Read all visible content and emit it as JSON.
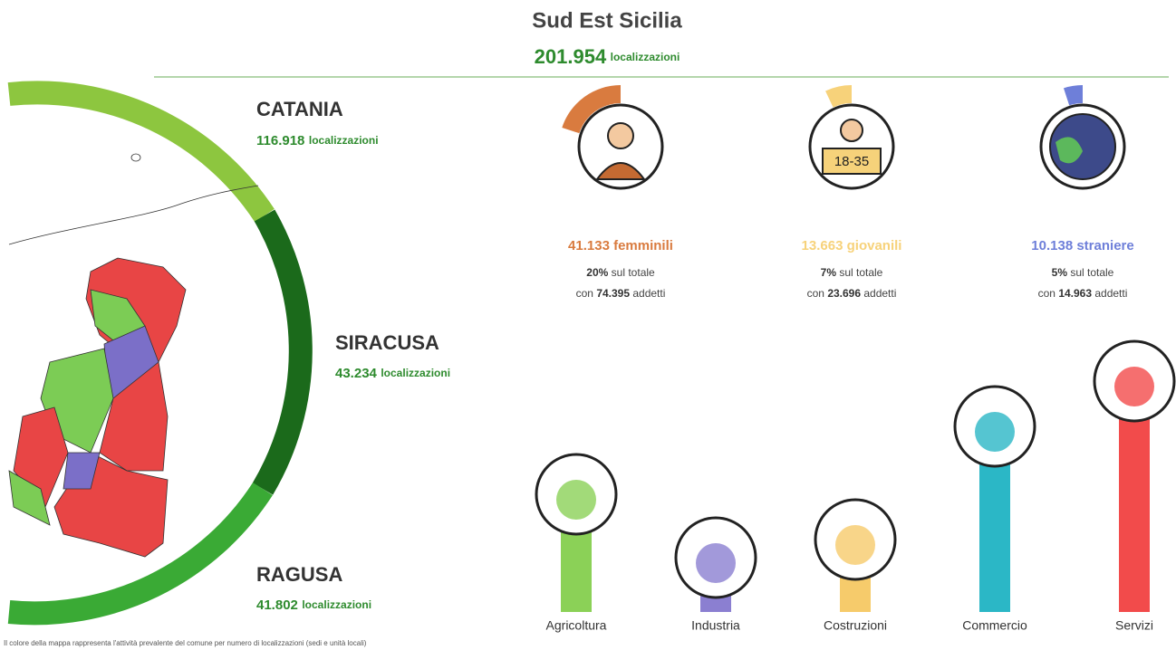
{
  "header": {
    "title": "Sud Est Sicilia",
    "total": "201.954",
    "unit": "localizzazioni"
  },
  "provinces": [
    {
      "name": "CATANIA",
      "count": {
        "value": 116918,
        "label": "116.918"
      },
      "unit": "localizzazioni"
    },
    {
      "name": "SIRACUSA",
      "count": {
        "value": 43234,
        "label": "43.234"
      },
      "unit": "localizzazioni"
    },
    {
      "name": "RAGUSA",
      "count": {
        "value": 41802,
        "label": "41.802"
      },
      "unit": "localizzazioni"
    }
  ],
  "indicators": [
    {
      "count": "41.133",
      "label": "femminili",
      "share": {
        "value": 20,
        "label": "20%"
      },
      "share_text": "sul totale",
      "prefix": "con",
      "employees": "74.395",
      "suffix": "addetti",
      "color": "#d97b3f"
    },
    {
      "count": "13.663",
      "label": "giovanili",
      "share": {
        "value": 7,
        "label": "7%"
      },
      "share_text": "sul totale",
      "prefix": "con",
      "employees": "23.696",
      "suffix": "addetti",
      "color": "#f7d27a"
    },
    {
      "count": "10.138",
      "label": "straniere",
      "share": {
        "value": 5,
        "label": "5%"
      },
      "share_text": "sul totale",
      "prefix": "con",
      "employees": "14.963",
      "suffix": "addetti",
      "color": "#6e7fd9"
    }
  ],
  "icon_text": "18-35",
  "sectors": [
    {
      "label": "Agricoltura",
      "value": 130,
      "color": "#8bd157"
    },
    {
      "label": "Industria",
      "value": 60,
      "color": "#8b7fd1"
    },
    {
      "label": "Costruzioni",
      "value": 80,
      "color": "#f6cb6b"
    },
    {
      "label": "Commercio",
      "value": 205,
      "color": "#2bb7c6"
    },
    {
      "label": "Servizi",
      "value": 255,
      "color": "#f24b4b"
    }
  ],
  "footnote": "Il colore della mappa rappresenta l'attività prevalente del comune per numero di localizzazioni (sedi e unità locali)"
}
